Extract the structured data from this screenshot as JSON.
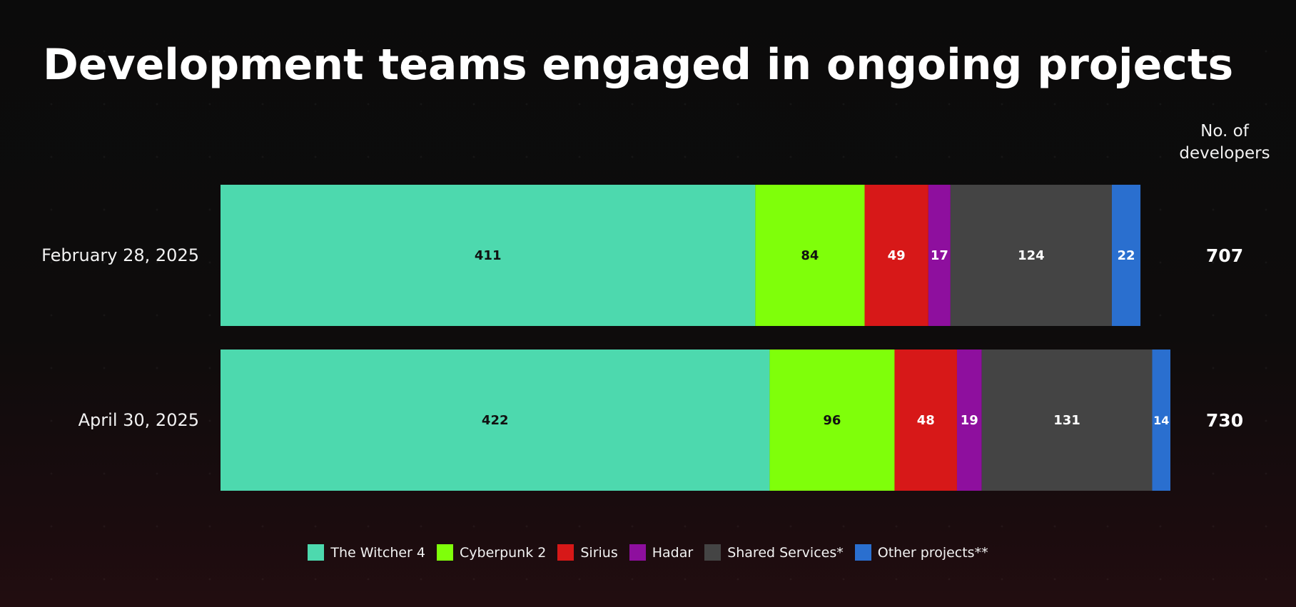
{
  "chart_data": {
    "type": "bar",
    "orientation": "horizontal",
    "stacked": true,
    "title": "Development teams engaged in ongoing projects",
    "total_header": "No. of developers",
    "categories": [
      "February 28, 2025",
      "April 30, 2025"
    ],
    "series": [
      {
        "name": "The Witcher 4",
        "color": "#4dd9ae",
        "label_color": "#111111",
        "values": [
          411,
          422
        ]
      },
      {
        "name": "Cyberpunk 2",
        "color": "#7fff0a",
        "label_color": "#111111",
        "values": [
          84,
          96
        ]
      },
      {
        "name": "Sirius",
        "color": "#d71818",
        "label_color": "#ffffff",
        "values": [
          49,
          48
        ]
      },
      {
        "name": "Hadar",
        "color": "#8e0f9e",
        "label_color": "#ffffff",
        "values": [
          17,
          19
        ]
      },
      {
        "name": "Shared Services*",
        "color": "#444444",
        "label_color": "#ffffff",
        "values": [
          124,
          131
        ]
      },
      {
        "name": "Other projects**",
        "color": "#2a6fcf",
        "label_color": "#ffffff",
        "values": [
          22,
          14
        ]
      }
    ],
    "totals": [
      707,
      730
    ],
    "xlim": [
      0,
      730
    ],
    "grid": false,
    "legend_position": "bottom"
  }
}
